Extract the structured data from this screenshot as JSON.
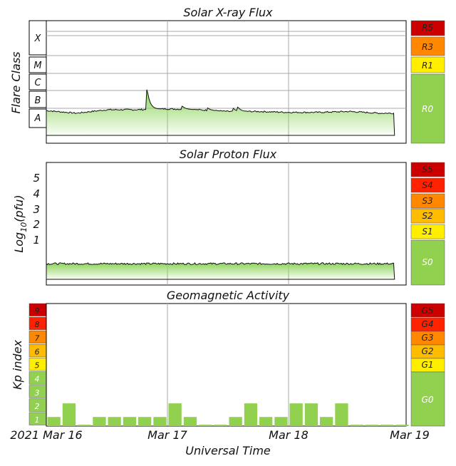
{
  "xray": {
    "title": "Solar X-ray Flux",
    "ylabel": "Flare Class",
    "classes": [
      "X",
      "M",
      "C",
      "B",
      "A"
    ],
    "scales": [
      {
        "label": "R5",
        "color": "#cc0000"
      },
      {
        "label": "R3",
        "color": "#ff8800"
      },
      {
        "label": "R1",
        "color": "#ffee00"
      },
      {
        "label": "R0",
        "color": "#92d050"
      }
    ]
  },
  "proton": {
    "title": "Solar Proton Flux",
    "ylabel_main": "Log",
    "ylabel_sub": "10",
    "ylabel_end": "(pfu)",
    "ticks": [
      "5",
      "4",
      "3",
      "2",
      "1"
    ],
    "scales": [
      {
        "label": "S5",
        "color": "#cc0000"
      },
      {
        "label": "S4",
        "color": "#ff2200"
      },
      {
        "label": "S3",
        "color": "#ff8800"
      },
      {
        "label": "S2",
        "color": "#ffbb00"
      },
      {
        "label": "S1",
        "color": "#ffee00"
      },
      {
        "label": "S0",
        "color": "#92d050"
      }
    ]
  },
  "geomag": {
    "title": "Geomagnetic Activity",
    "ylabel": "Kp index",
    "kp_levels": [
      "9",
      "8",
      "7",
      "6",
      "5",
      "4",
      "3",
      "2",
      "1"
    ],
    "kp_colors": [
      "#cc0000",
      "#ff2200",
      "#ff8800",
      "#ffbb00",
      "#ffee00",
      "#92d050",
      "#92d050",
      "#92d050",
      "#92d050"
    ],
    "scales": [
      {
        "label": "G5",
        "color": "#cc0000"
      },
      {
        "label": "G4",
        "color": "#ff2200"
      },
      {
        "label": "G3",
        "color": "#ff8800"
      },
      {
        "label": "G2",
        "color": "#ffbb00"
      },
      {
        "label": "G1",
        "color": "#ffee00"
      },
      {
        "label": "G0",
        "color": "#92d050"
      }
    ]
  },
  "xaxis": {
    "label": "Universal Time",
    "ticks": [
      "2021 Mar 16",
      "Mar 17",
      "Mar 18",
      "Mar 19"
    ]
  },
  "colors": {
    "flux_fill": "#8cd45a",
    "kp_bar": "#92d050",
    "grid": "#aaaaaa"
  },
  "chart_data": [
    {
      "type": "area",
      "title": "Solar X-ray Flux",
      "ylabel": "Flare Class",
      "x": [
        "2021-03-16 00:00",
        "2021-03-16 06:00",
        "2021-03-16 12:00",
        "2021-03-16 18:00",
        "2021-03-17 00:00",
        "2021-03-17 06:00",
        "2021-03-17 12:00",
        "2021-03-17 18:00",
        "2021-03-18 00:00",
        "2021-03-18 06:00",
        "2021-03-18 12:00",
        "2021-03-18 18:00",
        "2021-03-18 21:00"
      ],
      "y": [
        1.4,
        1.25,
        1.45,
        1.45,
        1.5,
        1.45,
        1.35,
        1.35,
        1.3,
        1.3,
        1.35,
        1.25,
        1.25
      ],
      "peaks": [
        {
          "x": "2021-03-16 20:00",
          "y": 2.6
        },
        {
          "x": "2021-03-17 03:00",
          "y": 1.65
        },
        {
          "x": "2021-03-17 08:00",
          "y": 1.55
        },
        {
          "x": "2021-03-17 13:00",
          "y": 1.55
        },
        {
          "x": "2021-03-17 14:00",
          "y": 1.6
        }
      ],
      "y_scale": "flare class (A=1, B=2, C=3, M=4, X=5)"
    },
    {
      "type": "area",
      "title": "Solar Proton Flux",
      "ylabel": "Log10(pfu)",
      "x": [
        "2021-03-16 00:00",
        "2021-03-18 21:00"
      ],
      "y": [
        -0.3,
        -0.3
      ],
      "ylim": [
        -1.5,
        6
      ]
    },
    {
      "type": "bar",
      "title": "Geomagnetic Activity",
      "ylabel": "Kp index",
      "xlabel": "Universal Time",
      "categories": [
        "2021-03-16 00:00",
        "2021-03-16 03:00",
        "2021-03-16 06:00",
        "2021-03-16 09:00",
        "2021-03-16 12:00",
        "2021-03-16 15:00",
        "2021-03-16 18:00",
        "2021-03-16 21:00",
        "2021-03-17 00:00",
        "2021-03-17 03:00",
        "2021-03-17 06:00",
        "2021-03-17 09:00",
        "2021-03-17 12:00",
        "2021-03-17 15:00",
        "2021-03-17 18:00",
        "2021-03-17 21:00",
        "2021-03-18 00:00",
        "2021-03-18 03:00",
        "2021-03-18 06:00",
        "2021-03-18 09:00",
        "2021-03-18 12:00",
        "2021-03-18 15:00",
        "2021-03-18 18:00",
        "2021-03-18 21:00"
      ],
      "values": [
        0.67,
        1.67,
        0.1,
        0.67,
        0.67,
        0.67,
        0.67,
        0.67,
        1.67,
        0.67,
        0.1,
        0.1,
        0.67,
        1.67,
        0.67,
        0.67,
        1.67,
        1.67,
        0.67,
        1.67,
        0.1,
        0.1,
        0.1,
        0.1
      ],
      "ylim": [
        0,
        9
      ]
    }
  ]
}
